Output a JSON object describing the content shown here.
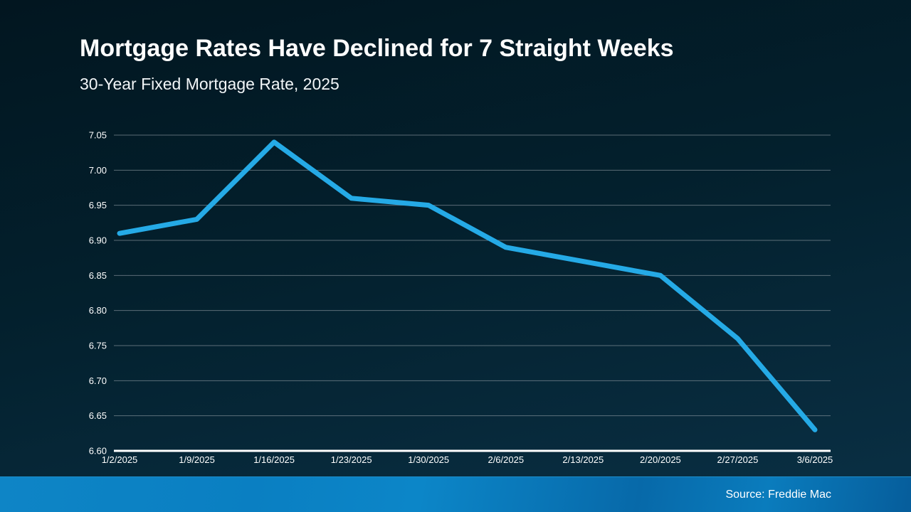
{
  "header": {
    "title": "Mortgage Rates Have Declined for 7 Straight Weeks",
    "subtitle": "30-Year Fixed Mortgage Rate, 2025"
  },
  "footer": {
    "source": "Source: Freddie Mac"
  },
  "colors": {
    "background_top": "#021620",
    "background_bottom": "#0a3045",
    "line": "#25aae6",
    "gridline": "#8a969e",
    "axis": "#ffffff",
    "tick_text": "#ffffff",
    "footer_bar_light": "#0e85c6",
    "footer_bar_dark": "#065d9b"
  },
  "chart_data": {
    "type": "line",
    "title": "Mortgage Rates Have Declined for 7 Straight Weeks",
    "subtitle": "30-Year Fixed Mortgage Rate, 2025",
    "x": [
      "1/2/2025",
      "1/9/2025",
      "1/16/2025",
      "1/23/2025",
      "1/30/2025",
      "2/6/2025",
      "2/13/2025",
      "2/20/2025",
      "2/27/2025",
      "3/6/2025"
    ],
    "series": [
      {
        "name": "30-Year Fixed Mortgage Rate",
        "values": [
          6.91,
          6.93,
          7.04,
          6.96,
          6.95,
          6.89,
          6.87,
          6.85,
          6.76,
          6.63
        ]
      }
    ],
    "xlabel": "",
    "ylabel": "",
    "ylim": [
      6.6,
      7.05
    ],
    "yticks": [
      6.6,
      6.65,
      6.7,
      6.75,
      6.8,
      6.85,
      6.9,
      6.95,
      7.0,
      7.05
    ],
    "grid": true,
    "legend": false,
    "line_width": 7
  }
}
